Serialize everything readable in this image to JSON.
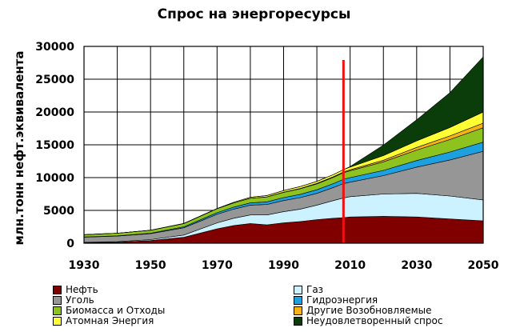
{
  "chart_data": {
    "type": "area",
    "stacked": true,
    "title": "Спрос на энергоресурсы",
    "ylabel": "млн.тонн нефт.эквивалента",
    "xlabel": "",
    "xlim": [
      1930,
      2050
    ],
    "ylim": [
      0,
      30000
    ],
    "grid": true,
    "legend_position": "bottom",
    "xticks": [
      1930,
      1950,
      1970,
      1990,
      2010,
      2030,
      2050
    ],
    "yticks": [
      0,
      5000,
      10000,
      15000,
      20000,
      25000,
      30000
    ],
    "tick_labels_x": [
      "1930",
      "1950",
      "1970",
      "1990",
      "2010",
      "2030",
      "2050"
    ],
    "tick_labels_y": [
      "0",
      "5000",
      "10000",
      "15000",
      "20000",
      "25000",
      "30000"
    ],
    "marker_line": {
      "x": 2008,
      "color": "#ee1111"
    },
    "x": [
      1930,
      1940,
      1950,
      1960,
      1970,
      1975,
      1980,
      1985,
      1990,
      1995,
      2000,
      2005,
      2008,
      2010,
      2020,
      2030,
      2040,
      2050
    ],
    "series": [
      {
        "name": "Нефть",
        "color": "#800000",
        "values": [
          80,
          150,
          400,
          900,
          2200,
          2700,
          3000,
          2800,
          3100,
          3300,
          3600,
          3800,
          3900,
          4000,
          4100,
          4000,
          3700,
          3400
        ]
      },
      {
        "name": "Газ",
        "color": "#ccf2ff",
        "values": [
          50,
          80,
          150,
          350,
          900,
          1100,
          1300,
          1500,
          1700,
          1900,
          2200,
          2700,
          3000,
          3100,
          3400,
          3600,
          3500,
          3200
        ]
      },
      {
        "name": "Уголь",
        "color": "#969696",
        "values": [
          800,
          850,
          900,
          1100,
          1300,
          1400,
          1500,
          1600,
          1700,
          1750,
          1800,
          2000,
          2200,
          2200,
          2800,
          4000,
          5500,
          7400
        ]
      },
      {
        "name": "Гидроэнергия",
        "color": "#1ca0e0",
        "values": [
          20,
          40,
          80,
          150,
          250,
          300,
          350,
          400,
          450,
          500,
          550,
          600,
          650,
          700,
          800,
          1000,
          1200,
          1400
        ]
      },
      {
        "name": "Биомасса и Отходы",
        "color": "#8dc21f",
        "values": [
          350,
          400,
          450,
          500,
          600,
          650,
          700,
          750,
          800,
          850,
          900,
          950,
          1000,
          1050,
          1300,
          1600,
          1900,
          2200
        ]
      },
      {
        "name": "Другие Возобновляемые",
        "color": "#f5b31a",
        "values": [
          0,
          0,
          0,
          0,
          0,
          0,
          10,
          20,
          30,
          50,
          80,
          100,
          120,
          150,
          250,
          400,
          550,
          700
        ]
      },
      {
        "name": "Атомная Энергия",
        "color": "#ffff33",
        "values": [
          0,
          0,
          0,
          10,
          30,
          80,
          150,
          200,
          250,
          280,
          300,
          330,
          350,
          400,
          700,
          1000,
          1300,
          1700
        ]
      },
      {
        "name": "Неудовлетворенный спрос",
        "color": "#0b3d0b",
        "values": [
          0,
          0,
          0,
          0,
          0,
          0,
          0,
          0,
          0,
          0,
          0,
          0,
          0,
          100,
          1600,
          3200,
          5300,
          8400
        ]
      }
    ]
  }
}
